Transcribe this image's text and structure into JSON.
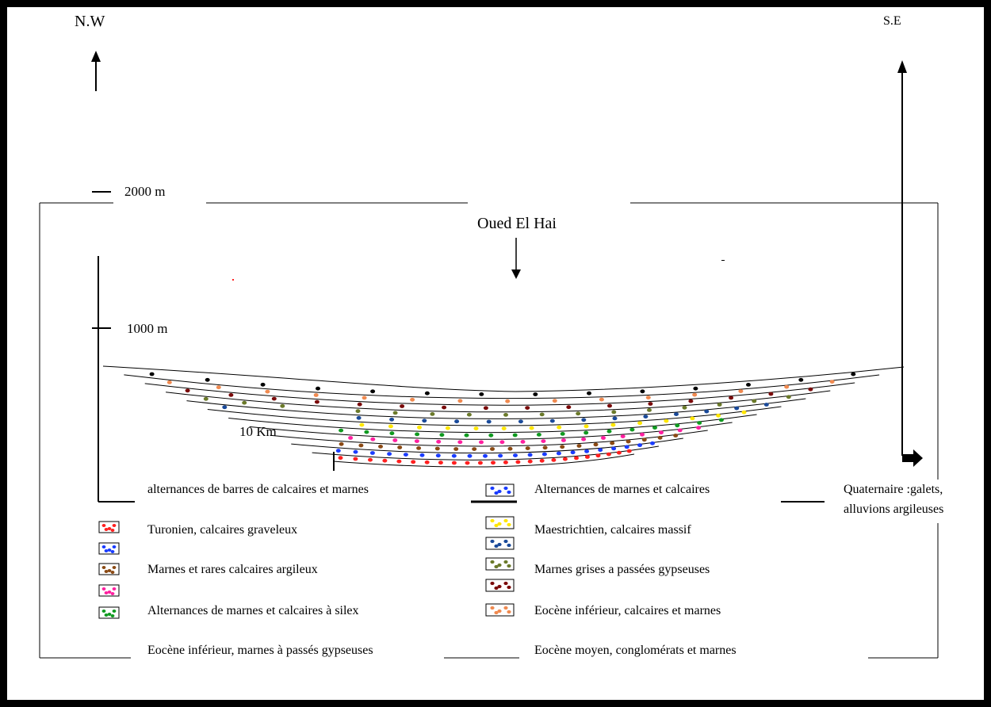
{
  "header": {
    "left_direction": "N.W",
    "right_direction": "S.E",
    "valley_label": "Oued El Hai"
  },
  "scale": {
    "elevation_top": "2000 m",
    "elevation_mid": "1000 m",
    "horizontal": "10 Km"
  },
  "legend": {
    "left": [
      "alternances de barres de calcaires et marnes",
      "Turonien, calcaires graveleux",
      "Marnes et rares calcaires argileux",
      "Alternances de marnes et calcaires à silex",
      "Eocène inférieur, marnes à passés gypseuses"
    ],
    "middle": [
      "Alternances de marnes et calcaires",
      "Maestrichtien, calcaires massif",
      "Marnes grises a passées gypseuses",
      "Eocène inférieur, calcaires et marnes",
      "Eocène moyen, conglomérats et marnes"
    ],
    "right_line1": "Quaternaire :galets,",
    "right_line2": "alluvions argileuses"
  },
  "colors": {
    "red": "#ff2020",
    "blue": "#1a3cff",
    "brown": "#8b4a14",
    "pink": "#ff20a0",
    "green": "#109a20",
    "yellow": "#ffe600",
    "navy": "#1a4a9a",
    "olive": "#6b7a2a",
    "maroon": "#7a0a0a",
    "orange": "#f08a50",
    "black": "#000000"
  }
}
